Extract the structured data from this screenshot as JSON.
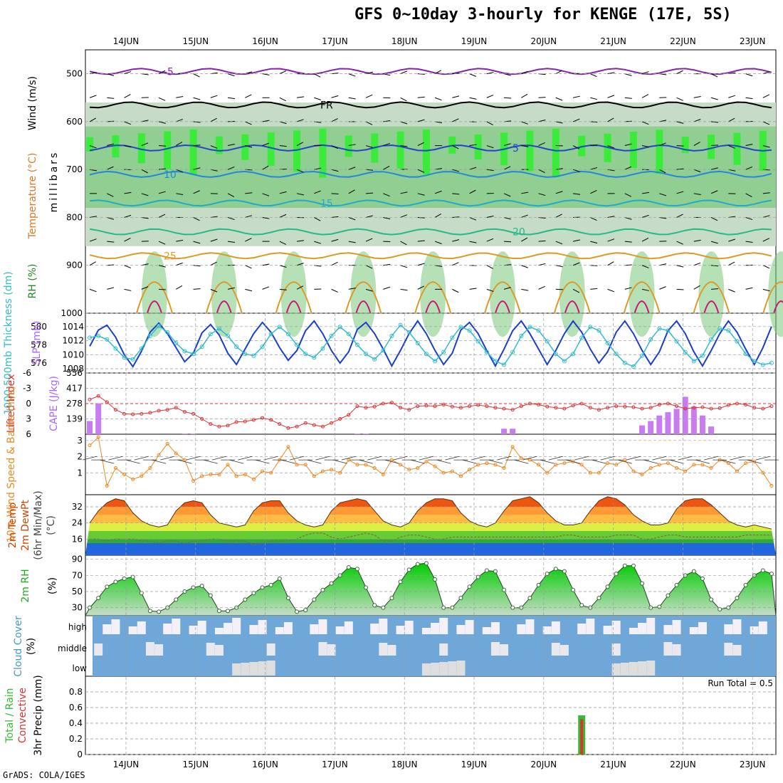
{
  "header": {
    "title": "GFS 0~10day 3-hourly for KENGE (17E, 5S)",
    "credit": "GrADS: COLA/IGES"
  },
  "dates": [
    "14JUN",
    "15JUN",
    "16JUN",
    "17JUN",
    "18JUN",
    "19JUN",
    "20JUN",
    "21JUN",
    "22JUN",
    "23JUN"
  ],
  "colors": {
    "rh_dark": "#00ff00",
    "rh_mid": "#7ac87a",
    "rh_light": "#c6dcc6",
    "thickness": "#33bbcc",
    "slp": "#1a3ecc",
    "cape": "#c77cf0",
    "li": "#dd3333",
    "wind": "#ee8822",
    "cloud": "#6fa8d8",
    "precip_total": "#33bb33",
    "precip_conv": "#dd3333"
  },
  "chart_data": [
    {
      "type": "heatmap",
      "panel": "upper-air",
      "ylabel": "millibars",
      "axis_labels": [
        "RH (%)",
        "Temperature (°C)",
        "Wind (m/s)"
      ],
      "yticks": [
        500,
        600,
        700,
        800,
        900,
        1000
      ],
      "ylim": [
        450,
        1000
      ],
      "x": [
        "14JUN",
        "15JUN",
        "16JUN",
        "17JUN",
        "18JUN",
        "19JUN",
        "20JUN",
        "21JUN",
        "22JUN",
        "23JUN"
      ],
      "isotherms": [
        {
          "value": "-5",
          "pressure_mb": 495,
          "color": "#8822aa"
        },
        {
          "value": "FR",
          "pressure_mb": 565,
          "color": "#000000"
        },
        {
          "value": "5",
          "pressure_mb": 655,
          "color": "#2244cc"
        },
        {
          "value": "10",
          "pressure_mb": 710,
          "color": "#2288dd"
        },
        {
          "value": "15",
          "pressure_mb": 770,
          "color": "#22aacc"
        },
        {
          "value": "20",
          "pressure_mb": 830,
          "color": "#22bb88"
        },
        {
          "value": "25",
          "pressure_mb": 880,
          "color": "#dd9922"
        }
      ]
    },
    {
      "type": "line",
      "panel": "thickness-slp",
      "axis_labels": [
        "1000-500mb Thickness (dm)",
        "SLP (mb)"
      ],
      "yticks_left": [
        576,
        578,
        580
      ],
      "yticks_right": [
        1008,
        1010,
        1012,
        1014
      ],
      "series": [
        {
          "name": "SLP",
          "values": [
            1011.2,
            1013.5,
            1014.2,
            1012.5,
            1010.0,
            1008.3,
            1010.5,
            1013.2,
            1014.5,
            1013.0,
            1011.0,
            1009.0,
            1010.2,
            1013.1,
            1014.3,
            1012.8,
            1010.2,
            1008.6,
            1010.8,
            1013.0,
            1014.6,
            1013.2,
            1011.0,
            1009.2,
            1010.6,
            1013.4,
            1014.8,
            1013.0,
            1010.6,
            1008.8,
            1010.4,
            1013.6,
            1014.6,
            1013.0,
            1010.8,
            1008.4,
            1010.6,
            1013.0,
            1014.8,
            1013.0,
            1010.6,
            1008.6,
            1010.2,
            1013.5,
            1014.6,
            1013.0,
            1010.6,
            1008.4,
            1010.8,
            1013.4,
            1014.8,
            1013.0,
            1010.8,
            1008.6,
            1010.6,
            1013.0,
            1014.8,
            1013.2,
            1010.8,
            1008.8,
            1010.4,
            1013.2,
            1014.8,
            1013.0,
            1010.6,
            1008.6,
            1010.4,
            1013.4,
            1014.8,
            1013.0,
            1010.4,
            1008.4,
            1010.6,
            1013.0,
            1014.8,
            1013.2,
            1010.8,
            1008.6,
            1011.0,
            1014.0
          ]
        },
        {
          "name": "Thickness",
          "values": [
            578.8,
            579.0,
            578.6,
            577.6,
            576.6,
            576.4,
            577.6,
            579.0,
            580.1,
            579.4,
            578.2,
            577.3,
            577.0,
            577.8,
            579.2,
            579.8,
            579.0,
            577.8,
            577.0,
            576.8,
            577.8,
            579.2,
            580.0,
            579.2,
            578.0,
            577.0,
            576.6,
            577.6,
            579.0,
            580.0,
            579.2,
            578.0,
            577.0,
            576.4,
            577.4,
            579.0,
            580.2,
            579.4,
            578.2,
            577.0,
            576.2,
            577.2,
            578.8,
            580.0,
            579.6,
            578.4,
            577.2,
            576.2,
            575.8,
            577.2,
            579.0,
            580.0,
            579.6,
            578.4,
            577.0,
            576.2,
            577.0,
            578.8,
            580.0,
            579.6,
            578.2,
            577.0,
            576.0,
            575.6,
            576.8,
            578.6,
            579.8,
            579.6,
            578.4,
            577.2,
            576.2,
            576.8,
            578.6,
            579.8,
            579.6,
            578.4,
            577.0,
            576.2,
            575.8,
            576.0
          ]
        }
      ]
    },
    {
      "type": "bar",
      "panel": "cape-li",
      "axis_labels": [
        "Lifted Index",
        "CAPE (J/kg)"
      ],
      "yticks_left": [
        -6,
        -3,
        0,
        3,
        6
      ],
      "yticks_right": [
        139,
        278,
        417,
        556
      ],
      "series": [
        {
          "name": "CAPE",
          "values": [
            120,
            280,
            0,
            0,
            0,
            0,
            0,
            0,
            0,
            0,
            0,
            5,
            5,
            0,
            0,
            0,
            0,
            0,
            0,
            0,
            0,
            0,
            0,
            0,
            0,
            0,
            0,
            0,
            0,
            0,
            0,
            5,
            5,
            0,
            0,
            0,
            0,
            0,
            0,
            0,
            0,
            0,
            0,
            0,
            0,
            0,
            0,
            0,
            50,
            50,
            0,
            0,
            0,
            0,
            0,
            0,
            0,
            0,
            0,
            0,
            0,
            0,
            0,
            0,
            80,
            120,
            170,
            200,
            230,
            340,
            250,
            170,
            70,
            0,
            0,
            0,
            0,
            0,
            0,
            0
          ]
        },
        {
          "name": "LI",
          "values": [
            -0.8,
            -1.5,
            -0.3,
            1.2,
            2.0,
            2.1,
            2.0,
            1.8,
            1.4,
            1.2,
            0.8,
            1.6,
            2.0,
            3.0,
            4.0,
            4.5,
            4.3,
            3.6,
            3.5,
            3.2,
            2.8,
            3.2,
            4.0,
            4.8,
            4.5,
            3.8,
            4.2,
            4.5,
            3.8,
            3.0,
            2.2,
            0.5,
            0.8,
            0.6,
            0.0,
            -0.2,
            0.8,
            1.2,
            0.5,
            0.4,
            0.5,
            0.2,
            0.6,
            0.8,
            0.5,
            0.3,
            0.5,
            0.8,
            1.0,
            1.2,
            0.5,
            0.0,
            0.2,
            0.6,
            0.8,
            1.0,
            0.4,
            0.0,
            0.8,
            1.2,
            0.8,
            0.5,
            0.6,
            0.7,
            1.0,
            0.8,
            0.2,
            0.0,
            0.5,
            1.0,
            0.8,
            0.7,
            1.0,
            0.9,
            0.3,
            0.0,
            0.2,
            0.8,
            1.0,
            0.5
          ]
        }
      ]
    },
    {
      "type": "line",
      "panel": "wind10m",
      "axis_labels": [
        "10m Wind Speed & Barbs (m/s)"
      ],
      "yticks": [
        1,
        2,
        3
      ],
      "series": [
        {
          "name": "Speed",
          "values": [
            2.7,
            3.2,
            0.2,
            1.3,
            0.9,
            0.6,
            0.8,
            1.3,
            2.1,
            2.8,
            2.2,
            1.8,
            0.5,
            0.8,
            0.9,
            0.9,
            1.5,
            0.8,
            0.9,
            0.6,
            1.1,
            1.0,
            1.8,
            2.6,
            1.5,
            1.5,
            0.8,
            1.1,
            1.2,
            1.0,
            1.8,
            1.5,
            1.5,
            1.3,
            0.9,
            1.8,
            1.5,
            1.2,
            1.3,
            1.7,
            1.4,
            1.0,
            1.1,
            0.8,
            1.2,
            1.5,
            1.6,
            1.5,
            1.3,
            2.6,
            1.9,
            1.8,
            1.5,
            1.0,
            1.5,
            1.6,
            1.7,
            1.5,
            1.0,
            1.0,
            1.6,
            1.5,
            1.8,
            1.1,
            0.9,
            1.3,
            1.5,
            1.6,
            1.3,
            1.1,
            1.5,
            1.5,
            1.3,
            1.8,
            1.6,
            1.1,
            1.6,
            1.7,
            1.0,
            0.2
          ]
        }
      ]
    },
    {
      "type": "area",
      "panel": "temp2m",
      "axis_labels": [
        "2m Temp",
        "2m DewPt",
        "(6hr Min/Max)",
        "(°C)"
      ],
      "yticks": [
        16,
        24,
        32
      ],
      "series": [
        {
          "name": "Temp",
          "values": [
            24,
            30,
            34,
            36,
            35,
            29,
            25,
            23,
            22,
            23,
            30,
            34,
            35,
            34,
            28,
            24,
            23,
            22,
            23,
            30,
            34,
            35,
            35,
            29,
            25,
            23,
            22,
            23,
            30,
            34,
            35,
            36,
            35,
            30,
            25,
            23,
            22,
            24,
            30,
            34,
            36,
            36,
            35,
            29,
            25,
            23,
            22,
            24,
            30,
            35,
            36,
            37,
            34,
            29,
            25,
            23,
            23,
            24,
            30,
            35,
            37,
            36,
            33,
            28,
            25,
            23,
            23,
            24,
            31,
            35,
            36,
            36,
            33,
            29,
            25,
            23,
            22,
            23,
            22,
            21
          ]
        },
        {
          "name": "DewPt",
          "values": [
            16,
            16,
            15,
            16,
            16,
            16,
            15,
            15,
            14,
            15,
            15,
            14,
            15,
            15,
            16,
            16,
            15,
            15,
            15,
            13,
            14,
            15,
            15,
            15,
            16,
            18,
            19,
            19,
            17,
            16,
            17,
            18,
            19,
            18,
            15,
            15,
            17,
            18,
            18,
            17,
            16,
            16,
            17,
            17,
            17,
            17,
            17,
            17,
            17,
            17,
            17,
            17,
            17,
            17,
            17,
            18,
            18,
            17,
            17,
            17,
            17,
            18,
            18,
            18,
            16,
            16,
            17,
            18,
            18,
            17,
            17,
            17,
            17,
            17,
            17,
            17,
            18,
            18,
            18,
            18
          ]
        }
      ]
    },
    {
      "type": "area",
      "panel": "rh2m",
      "axis_labels": [
        "2m RH",
        "(%)"
      ],
      "yticks": [
        30,
        50,
        70,
        90
      ],
      "series": [
        {
          "name": "RH",
          "values": [
            30,
            42,
            56,
            62,
            66,
            68,
            48,
            26,
            25,
            30,
            40,
            50,
            55,
            57,
            45,
            26,
            26,
            30,
            40,
            48,
            55,
            58,
            66,
            42,
            25,
            27,
            40,
            52,
            60,
            70,
            80,
            78,
            55,
            33,
            30,
            42,
            62,
            77,
            84,
            85,
            65,
            30,
            30,
            42,
            56,
            68,
            76,
            75,
            52,
            30,
            30,
            42,
            58,
            72,
            78,
            75,
            52,
            33,
            30,
            42,
            56,
            72,
            82,
            82,
            60,
            30,
            31,
            45,
            58,
            70,
            75,
            66,
            40,
            28,
            30,
            42,
            58,
            70,
            76,
            72
          ]
        }
      ]
    },
    {
      "type": "heatmap",
      "panel": "cloud",
      "axis_labels": [
        "Cloud Cover",
        "(%)"
      ],
      "yticks": [
        "high",
        "middle",
        "low"
      ]
    },
    {
      "type": "bar",
      "panel": "precip",
      "axis_labels": [
        "Total / Rain",
        "Convective",
        "3hr Precip (mm)"
      ],
      "annotation": "Run Total = 0.5",
      "yticks": [
        0,
        0.2,
        0.4,
        0.6,
        0.8
      ],
      "ylim": [
        0,
        1.0
      ],
      "series": [
        {
          "name": "Total",
          "index": 57,
          "value": 0.5
        },
        {
          "name": "Convective",
          "index": 57,
          "value": 0.45
        }
      ]
    }
  ]
}
